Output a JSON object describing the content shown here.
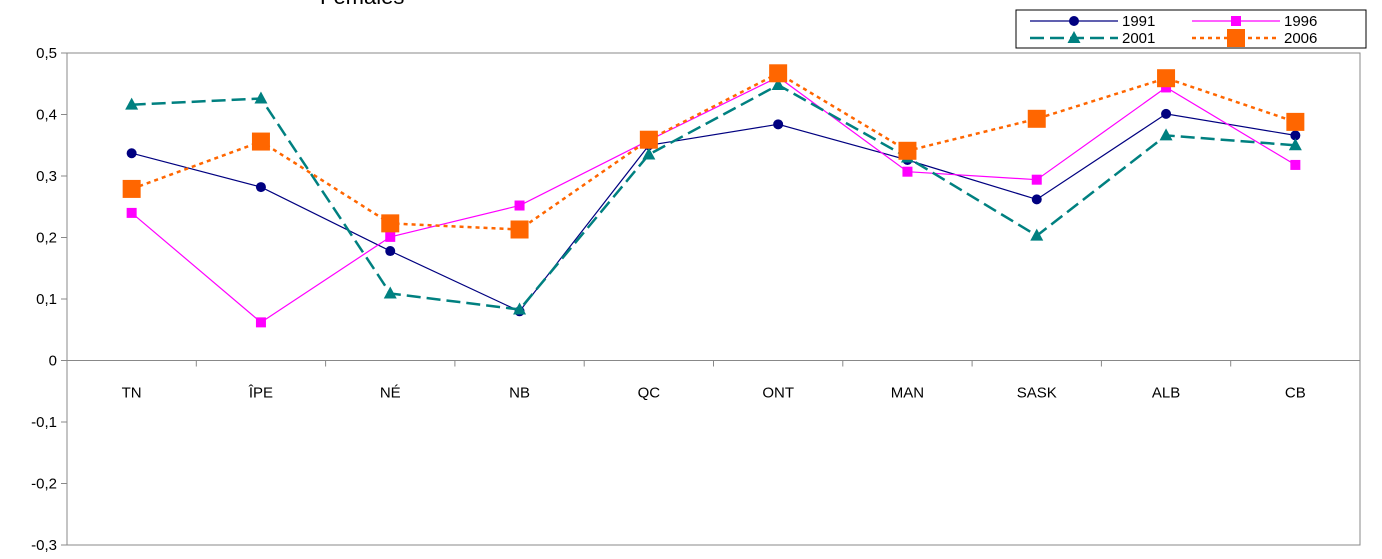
{
  "chart_data": {
    "type": "line",
    "title": "Females",
    "categories": [
      "TN",
      "ÎPE",
      "NÉ",
      "NB",
      "QC",
      "ONT",
      "MAN",
      "SASK",
      "ALB",
      "CB"
    ],
    "y_ticks": [
      "0,5",
      "0,4",
      "0,3",
      "0,2",
      "0,1",
      "0",
      "-0,1",
      "-0,2",
      "-0,3"
    ],
    "ylim": [
      -0.3,
      0.5
    ],
    "grid": false,
    "legend_position": "top-right",
    "series": [
      {
        "name": "1991",
        "color": "#000080",
        "marker": "circle",
        "dash": "solid",
        "values": [
          0.337,
          0.282,
          0.178,
          0.08,
          0.35,
          0.384,
          0.326,
          0.262,
          0.401,
          0.366
        ]
      },
      {
        "name": "1996",
        "color": "#FF00FF",
        "marker": "square",
        "dash": "solid",
        "values": [
          0.24,
          0.062,
          0.201,
          0.252,
          0.358,
          0.461,
          0.307,
          0.294,
          0.444,
          0.318
        ]
      },
      {
        "name": "2001",
        "color": "#008080",
        "marker": "triangle",
        "dash": "dashed",
        "values": [
          0.416,
          0.426,
          0.109,
          0.083,
          0.335,
          0.448,
          0.33,
          0.203,
          0.366,
          0.35
        ]
      },
      {
        "name": "2006",
        "color": "#FF6600",
        "marker": "bigsquare",
        "dash": "dotted",
        "values": [
          0.279,
          0.356,
          0.223,
          0.213,
          0.359,
          0.467,
          0.341,
          0.393,
          0.459,
          0.388
        ]
      }
    ]
  }
}
